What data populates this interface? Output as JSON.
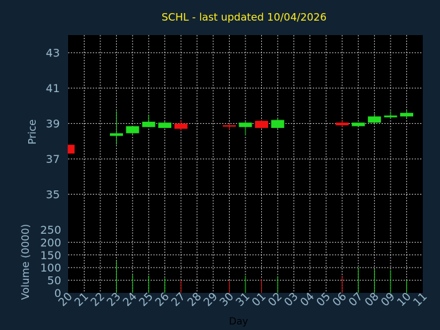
{
  "title": "SCHL - last updated 10/04/2026",
  "colors": {
    "background": "#112233",
    "up": "#22dd22",
    "down": "#ee1111",
    "title": "#ffee22",
    "axis_text": "#99bbcc"
  },
  "chart_data": [
    {
      "type": "candlestick",
      "ylabel": "Price",
      "ylim": [
        33,
        44
      ],
      "yticks": [
        35,
        37,
        39,
        41,
        43
      ],
      "grid": true,
      "categories": [
        "20",
        "21",
        "22",
        "23",
        "24",
        "25",
        "26",
        "27",
        "28",
        "29",
        "30",
        "31",
        "01",
        "02",
        "03",
        "04",
        "05",
        "06",
        "07",
        "08",
        "09",
        "10",
        "11"
      ],
      "candles": [
        {
          "i": 0,
          "open": 37.8,
          "close": 37.3,
          "high": 37.8,
          "low": 37.3
        },
        {
          "i": 3,
          "open": 38.3,
          "close": 38.45,
          "high": 39.7,
          "low": 37.8
        },
        {
          "i": 4,
          "open": 38.45,
          "close": 38.85,
          "high": 38.85,
          "low": 38.4
        },
        {
          "i": 5,
          "open": 38.8,
          "close": 39.1,
          "high": 39.5,
          "low": 38.8
        },
        {
          "i": 6,
          "open": 38.75,
          "close": 39.05,
          "high": 39.1,
          "low": 38.75
        },
        {
          "i": 7,
          "open": 39.0,
          "close": 38.7,
          "high": 39.2,
          "low": 38.6
        },
        {
          "i": 10,
          "open": 38.9,
          "close": 38.85,
          "high": 39.0,
          "low": 38.65
        },
        {
          "i": 11,
          "open": 38.8,
          "close": 39.05,
          "high": 39.1,
          "low": 38.35
        },
        {
          "i": 12,
          "open": 39.15,
          "close": 38.75,
          "high": 39.2,
          "low": 38.7
        },
        {
          "i": 13,
          "open": 38.75,
          "close": 39.2,
          "high": 39.3,
          "low": 38.7
        },
        {
          "i": 17,
          "open": 39.05,
          "close": 38.9,
          "high": 39.2,
          "low": 38.8
        },
        {
          "i": 18,
          "open": 38.85,
          "close": 39.05,
          "high": 39.05,
          "low": 38.85
        },
        {
          "i": 19,
          "open": 39.05,
          "close": 39.4,
          "high": 39.55,
          "low": 39.0
        },
        {
          "i": 20,
          "open": 39.35,
          "close": 39.45,
          "high": 39.7,
          "low": 39.3
        },
        {
          "i": 21,
          "open": 39.4,
          "close": 39.6,
          "high": 39.75,
          "low": 39.3
        }
      ]
    },
    {
      "type": "bar",
      "ylabel": "Volume (0000)",
      "xlabel": "Day",
      "ylim": [
        0,
        250
      ],
      "yticks": [
        0,
        50,
        100,
        150,
        200,
        250
      ],
      "grid": true,
      "categories": [
        "20",
        "21",
        "22",
        "23",
        "24",
        "25",
        "26",
        "27",
        "28",
        "29",
        "30",
        "31",
        "01",
        "02",
        "03",
        "04",
        "05",
        "06",
        "07",
        "08",
        "09",
        "10",
        "11"
      ],
      "bars": [
        {
          "i": 3,
          "value": 128,
          "dir": "up"
        },
        {
          "i": 4,
          "value": 72,
          "dir": "up"
        },
        {
          "i": 5,
          "value": 68,
          "dir": "up"
        },
        {
          "i": 6,
          "value": 58,
          "dir": "up"
        },
        {
          "i": 7,
          "value": 50,
          "dir": "down"
        },
        {
          "i": 10,
          "value": 48,
          "dir": "down"
        },
        {
          "i": 11,
          "value": 68,
          "dir": "up"
        },
        {
          "i": 12,
          "value": 55,
          "dir": "down"
        },
        {
          "i": 13,
          "value": 66,
          "dir": "up"
        },
        {
          "i": 17,
          "value": 68,
          "dir": "down"
        },
        {
          "i": 18,
          "value": 100,
          "dir": "up"
        },
        {
          "i": 19,
          "value": 92,
          "dir": "up"
        },
        {
          "i": 20,
          "value": 90,
          "dir": "up"
        },
        {
          "i": 21,
          "value": 50,
          "dir": "up"
        }
      ]
    }
  ]
}
